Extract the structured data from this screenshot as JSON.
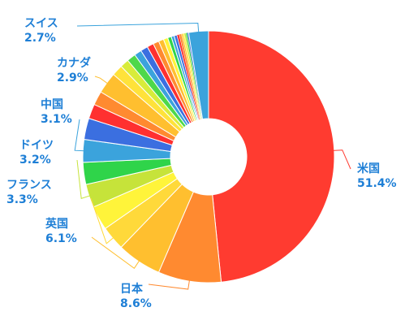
{
  "chart_data": {
    "type": "pie",
    "variant": "donut",
    "slices": [
      {
        "label": "米国",
        "value": 51.4,
        "label_text": "51.4%",
        "color": "#ff3b30"
      },
      {
        "label": "日本",
        "value": 8.6,
        "label_text": "8.6%",
        "color": "#ff8a30"
      },
      {
        "label": "英国",
        "value": 6.1,
        "label_text": "6.1%",
        "color": "#ffbf2f"
      },
      {
        "label": "フランス",
        "value": 3.3,
        "label_text": "3.3%",
        "color": "#ffd93a"
      },
      {
        "label": "",
        "value": 3.3,
        "label_text": "",
        "color": "#fff43a"
      },
      {
        "label": "ドイツ",
        "value": 3.2,
        "label_text": "3.2%",
        "color": "#c6e33a"
      },
      {
        "label": "",
        "value": 3.0,
        "label_text": "",
        "color": "#2fd44a"
      },
      {
        "label": "中国",
        "value": 3.1,
        "label_text": "3.1%",
        "color": "#3ba3dc"
      },
      {
        "label": "",
        "value": 2.9,
        "label_text": "",
        "color": "#3b6fe0"
      },
      {
        "label": "",
        "value": 2.0,
        "label_text": "",
        "color": "#ff3030"
      },
      {
        "label": "",
        "value": 1.9,
        "label_text": "",
        "color": "#ff8a30"
      },
      {
        "label": "カナダ",
        "value": 2.9,
        "label_text": "2.9%",
        "color": "#ffbf2f"
      },
      {
        "label": "",
        "value": 1.5,
        "label_text": "",
        "color": "#ffe23a"
      },
      {
        "label": "",
        "value": 1.2,
        "label_text": "",
        "color": "#d8ec3a"
      },
      {
        "label": "",
        "value": 1.2,
        "label_text": "",
        "color": "#4ed84a"
      },
      {
        "label": "",
        "value": 1.0,
        "label_text": "",
        "color": "#3ba3dc"
      },
      {
        "label": "",
        "value": 1.0,
        "label_text": "",
        "color": "#3b6fe0"
      },
      {
        "label": "",
        "value": 0.9,
        "label_text": "",
        "color": "#ff3030"
      },
      {
        "label": "",
        "value": 0.8,
        "label_text": "",
        "color": "#ff8a30"
      },
      {
        "label": "",
        "value": 0.7,
        "label_text": "",
        "color": "#ffbf2f"
      },
      {
        "label": "",
        "value": 0.6,
        "label_text": "",
        "color": "#fff43a"
      },
      {
        "label": "",
        "value": 0.5,
        "label_text": "",
        "color": "#2fd44a"
      },
      {
        "label": "",
        "value": 0.4,
        "label_text": "",
        "color": "#3ba3dc"
      },
      {
        "label": "",
        "value": 0.4,
        "label_text": "",
        "color": "#3b6fe0"
      },
      {
        "label": "",
        "value": 0.3,
        "label_text": "",
        "color": "#ff3030"
      },
      {
        "label": "",
        "value": 0.3,
        "label_text": "",
        "color": "#ff8a30"
      },
      {
        "label": "",
        "value": 0.2,
        "label_text": "",
        "color": "#ffbf2f"
      },
      {
        "label": "",
        "value": 0.2,
        "label_text": "",
        "color": "#fff43a"
      },
      {
        "label": "",
        "value": 0.2,
        "label_text": "",
        "color": "#c6e33a"
      },
      {
        "label": "",
        "value": 0.2,
        "label_text": "",
        "color": "#2fd44a"
      },
      {
        "label": "",
        "value": 0.2,
        "label_text": "",
        "color": "#3b6fe0"
      },
      {
        "label": "スイス",
        "value": 2.7,
        "label_text": "2.7%",
        "color": "#3ba3dc"
      }
    ],
    "label_color": "#1e7fd6",
    "title": "",
    "legend": "none"
  }
}
